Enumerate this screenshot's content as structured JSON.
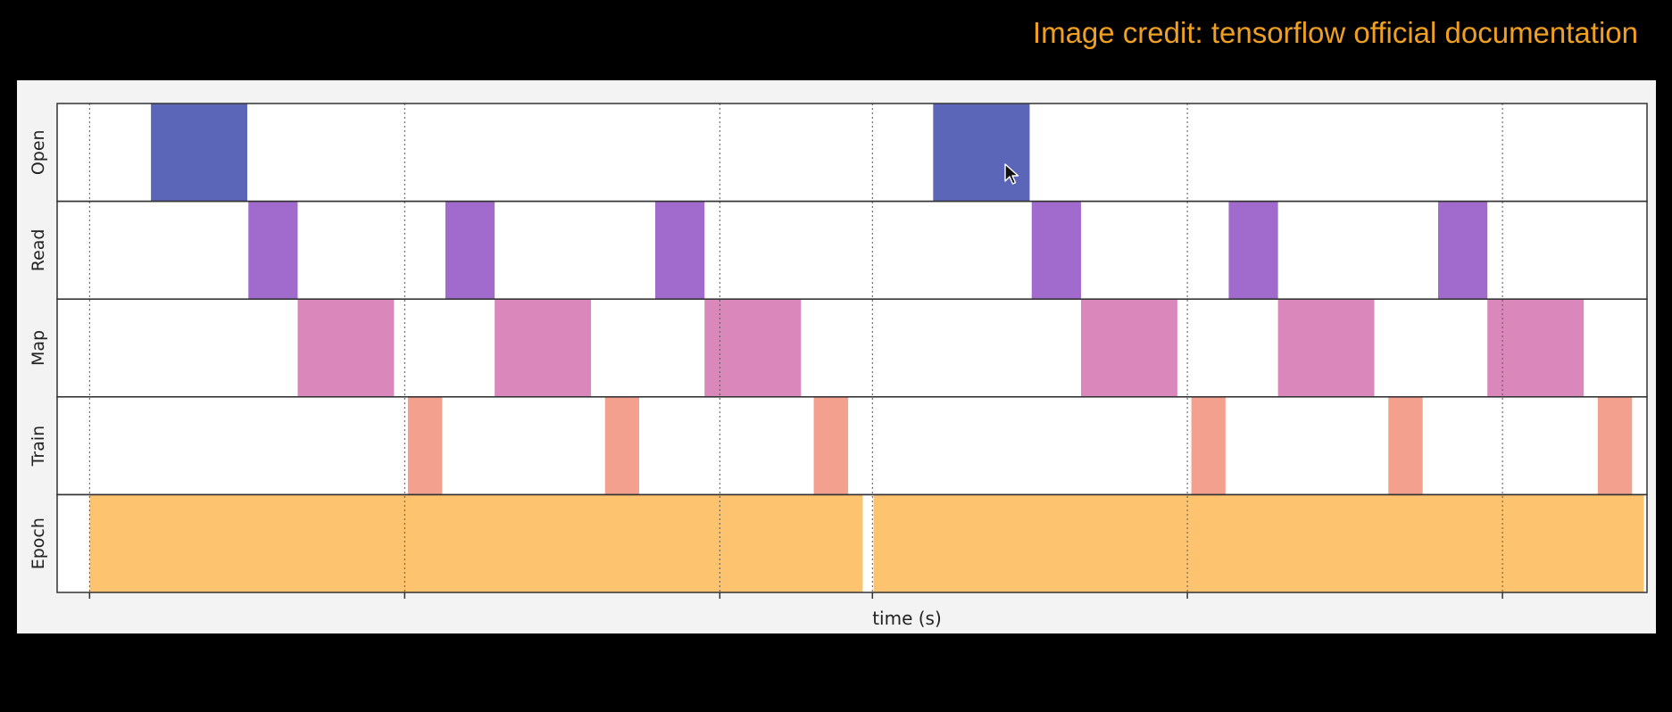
{
  "credit": {
    "text": "Image credit: tensorflow official documentation",
    "color": "#f0a020"
  },
  "chart_data": {
    "type": "timeline",
    "title": "",
    "xlabel": "time (s)",
    "ylabel": "",
    "xlim": [
      0,
      1.0
    ],
    "grid": true,
    "x_gridlines": [
      0.0204,
      0.2186,
      0.4168,
      0.5128,
      0.7109,
      0.9091
    ],
    "rows": [
      {
        "name": "Open",
        "color": "#5b66b8",
        "intervals": [
          [
            0.059,
            0.1196
          ],
          [
            0.551,
            0.6117
          ]
        ]
      },
      {
        "name": "Read",
        "color": "#a06bcc",
        "intervals": [
          [
            0.1203,
            0.1513
          ],
          [
            0.2442,
            0.2752
          ],
          [
            0.3762,
            0.4072
          ],
          [
            0.613,
            0.644
          ],
          [
            0.7369,
            0.7679
          ],
          [
            0.8686,
            0.8996
          ]
        ]
      },
      {
        "name": "Map",
        "color": "#da88bb",
        "intervals": [
          [
            0.1513,
            0.2119
          ],
          [
            0.2752,
            0.3358
          ],
          [
            0.4072,
            0.4679
          ],
          [
            0.644,
            0.7046
          ],
          [
            0.7679,
            0.8285
          ],
          [
            0.8996,
            0.9602
          ]
        ]
      },
      {
        "name": "Train",
        "color": "#f4a08e",
        "intervals": [
          [
            0.2206,
            0.2422
          ],
          [
            0.3446,
            0.3661
          ],
          [
            0.4759,
            0.4975
          ],
          [
            0.7134,
            0.7349
          ],
          [
            0.8373,
            0.8589
          ],
          [
            0.969,
            0.9906
          ]
        ]
      },
      {
        "name": "Epoch",
        "color": "#fdc36f",
        "intervals": [
          [
            0.0204,
            0.5067
          ],
          [
            0.5135,
            0.998
          ]
        ]
      }
    ]
  }
}
